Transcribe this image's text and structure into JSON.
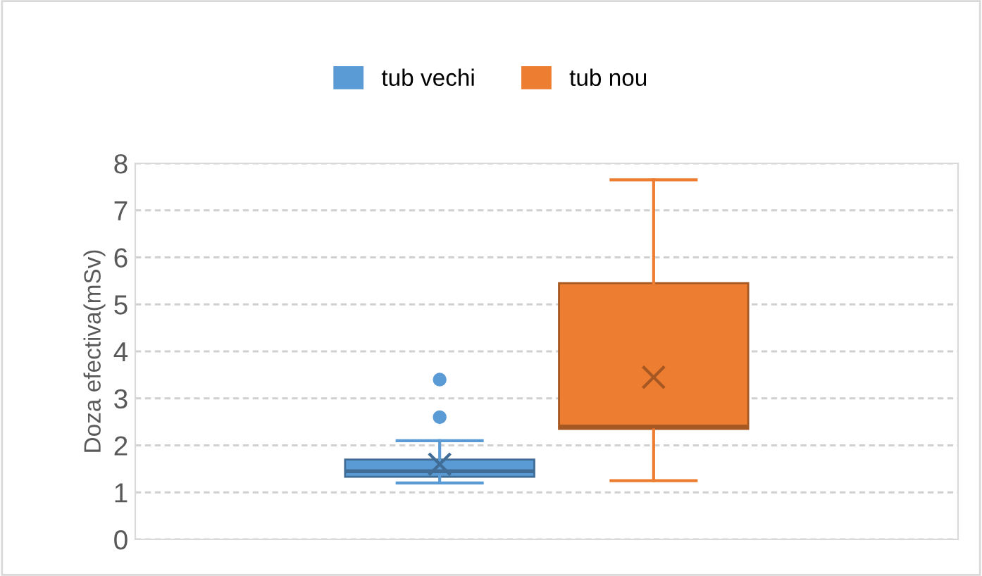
{
  "chart_data": {
    "type": "box",
    "ylabel": "Doza efectiva(mSv)",
    "categories": [
      null
    ],
    "series": [
      {
        "name": "tub vechi",
        "color": "#5b9bd5",
        "boxes": [
          {
            "low": 1.2,
            "q1": 1.33,
            "median": 1.45,
            "q3": 1.7,
            "high": 2.1,
            "mean": 1.6,
            "outliers": [
              2.6,
              3.4
            ]
          }
        ]
      },
      {
        "name": "tub nou",
        "color": "#ed7d31",
        "boxes": [
          {
            "low": 1.25,
            "q1": 2.35,
            "median": 2.4,
            "q3": 5.45,
            "high": 7.65,
            "mean": 3.45
          }
        ]
      }
    ],
    "ylim": [
      0,
      8
    ],
    "yticks": [
      0,
      1,
      2,
      3,
      4,
      5,
      6,
      7,
      8
    ],
    "grid": "y",
    "legend": "top",
    "tick_labels": "y"
  }
}
